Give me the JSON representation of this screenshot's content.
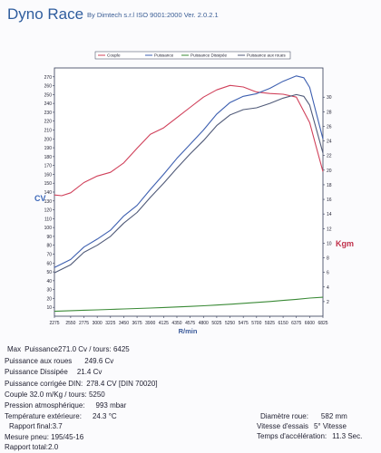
{
  "header": {
    "brand": "Dyno Race",
    "subtitle": "By Dimtech s.r.l  ISO 9001:2000  Ver. 2.0.2.1"
  },
  "colors": {
    "couple": "#d0405a",
    "puissance": "#3d5fb0",
    "puissance_dissipee": "#3a8a36",
    "puissance_roues": "#505a78",
    "axis_label": "#3a66b8",
    "kgm_label": "#c0304a"
  },
  "chart_data": {
    "type": "line",
    "xlabel": "R/min",
    "ylabel_left": "CV",
    "ylabel_right": "Kgm",
    "ylim_left": [
      0,
      280
    ],
    "ylim_right": [
      0,
      34
    ],
    "grid": false,
    "legend_position": "top",
    "x_ticks": [
      "2275",
      "2550",
      "2775",
      "3000",
      "3225",
      "3450",
      "3675",
      "3900",
      "4125",
      "4350",
      "4575",
      "4800",
      "5025",
      "5250",
      "5475",
      "5700",
      "5925",
      "6150",
      "6375",
      "6600",
      "6825"
    ],
    "y_left_ticks": [
      "10",
      "20",
      "30",
      "40",
      "50",
      "60",
      "70",
      "80",
      "90",
      "100",
      "110",
      "120",
      "130",
      "140",
      "150",
      "160",
      "170",
      "180",
      "190",
      "200",
      "210",
      "220",
      "230",
      "240",
      "250",
      "260",
      "270"
    ],
    "y_right_ticks": [
      "2",
      "4",
      "6",
      "8",
      "10",
      "12",
      "14",
      "16",
      "18",
      "20",
      "22",
      "24",
      "26",
      "28",
      "30"
    ],
    "series": [
      {
        "name": "Couple",
        "axis": "right",
        "x": [
          2275,
          2400,
          2550,
          2775,
          3000,
          3225,
          3450,
          3675,
          3900,
          4125,
          4350,
          4575,
          4800,
          5025,
          5250,
          5475,
          5700,
          5925,
          6150,
          6375,
          6600,
          6700,
          6825
        ],
        "values": [
          16.6,
          16.5,
          16.9,
          18.3,
          19.2,
          19.7,
          21.0,
          23.0,
          24.9,
          25.8,
          27.2,
          28.6,
          30.0,
          31.0,
          31.6,
          31.4,
          30.7,
          30.5,
          30.4,
          30.0,
          26.5,
          23.5,
          19.8
        ]
      },
      {
        "name": "Puissance",
        "axis": "left",
        "x": [
          2275,
          2400,
          2550,
          2775,
          3000,
          3225,
          3450,
          3675,
          3900,
          4125,
          4350,
          4575,
          4800,
          5025,
          5250,
          5475,
          5700,
          5925,
          6150,
          6375,
          6500,
          6600,
          6700,
          6825
        ],
        "values": [
          55,
          59,
          64,
          78,
          87,
          97,
          113,
          125,
          143,
          160,
          178,
          194,
          210,
          228,
          241,
          248,
          251,
          257,
          265,
          271,
          269,
          258,
          232,
          200
        ]
      },
      {
        "name": "Puissance Dissipée",
        "axis": "left",
        "x": [
          2275,
          2550,
          2775,
          3000,
          3225,
          3450,
          3675,
          3900,
          4125,
          4350,
          4575,
          4800,
          5025,
          5250,
          5475,
          5700,
          5925,
          6150,
          6375,
          6600,
          6825
        ],
        "values": [
          5.5,
          6.2,
          6.7,
          7.2,
          7.7,
          8.2,
          8.7,
          9.2,
          9.8,
          10.4,
          11.0,
          11.8,
          12.6,
          13.5,
          14.5,
          15.5,
          16.6,
          17.8,
          19.0,
          20.4,
          21.4
        ]
      },
      {
        "name": "Puissance aux roues",
        "axis": "left",
        "x": [
          2275,
          2400,
          2550,
          2775,
          3000,
          3225,
          3450,
          3675,
          3900,
          4125,
          4350,
          4575,
          4800,
          5025,
          5250,
          5475,
          5700,
          5925,
          6150,
          6375,
          6500,
          6600,
          6700,
          6825
        ],
        "values": [
          49,
          53,
          58,
          72,
          80,
          90,
          105,
          117,
          134,
          150,
          167,
          183,
          198,
          215,
          227,
          233,
          235,
          240,
          246,
          250,
          248,
          238,
          214,
          184
        ]
      }
    ]
  },
  "stats": {
    "max_label": "Max",
    "max_value": "Puissance271.0 Cv / tours: 6425",
    "roues_label": "Puissance aux roues",
    "roues_value": "249.6 Cv",
    "dissipee_label": "Puissance Dissipée",
    "dissipee_value": "21.4 Cv",
    "corrigee_label": "Puissance corrigée DIN:",
    "corrigee_value": "278.4 CV  [DIN 70020]",
    "couple_text": "Couple 32.0  m/Kg / tours: 5250",
    "pression_label": "Pression atmosphérique:",
    "pression_value": "993 mbar",
    "temperature_label": "Température extérieure:",
    "temperature_value": "24.3 °C",
    "rapport_final": "Rapport final:3.7",
    "mesure_pneu": "Mesure pneu: 195/45-16",
    "rapport_total": "Rapport total:2.0",
    "diametre_label": "Diamètre roue:",
    "diametre_value": "582 mm",
    "vitesse_label": "Vitesse d'essais",
    "vitesse_value": "5° Vitesse",
    "temps_label": "Temps d'accélération:",
    "temps_value": "11.3 Sec."
  }
}
